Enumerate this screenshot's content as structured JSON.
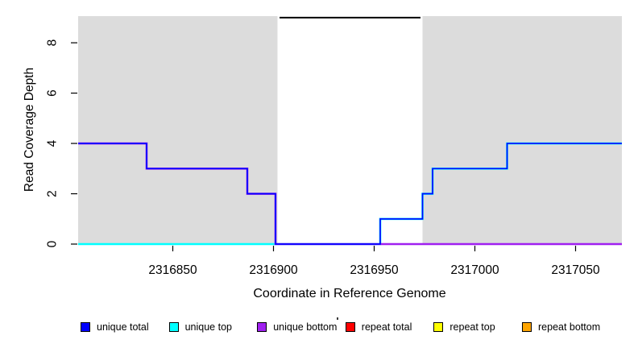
{
  "chart_data": {
    "type": "line",
    "subtype": "step-coverage",
    "title": "",
    "xlabel": "Coordinate in Reference Genome",
    "ylabel": "Read Coverage Depth",
    "xlim": [
      2316803,
      2317073
    ],
    "ylim": [
      0,
      9.06
    ],
    "x_ticks": [
      2316850,
      2316900,
      2316950,
      2317000,
      2317050
    ],
    "y_ticks": [
      0,
      2,
      4,
      6,
      8
    ],
    "grid": "off",
    "shading_color": "#DCDCDC",
    "shaded_regions": [
      {
        "from": 2316803,
        "to": 2316902
      },
      {
        "from": 2316974,
        "to": 2317073
      }
    ],
    "gap_marker": {
      "from": 2316903,
      "to": 2316973,
      "depth": 9,
      "color": "#000000"
    },
    "series": [
      {
        "name": "unique top",
        "color": "#00FFFF",
        "steps": [
          [
            2316803,
            2316953,
            0
          ],
          [
            2316953,
            2316974,
            1
          ],
          [
            2316974,
            2316979,
            2
          ],
          [
            2316979,
            2317016,
            3
          ],
          [
            2317016,
            2317073,
            4
          ]
        ]
      },
      {
        "name": "unique bottom",
        "color": "#A020F0",
        "steps": [
          [
            2316803,
            2316837,
            4
          ],
          [
            2316837,
            2316887,
            3
          ],
          [
            2316887,
            2316901,
            2
          ],
          [
            2316901,
            2317073,
            0
          ]
        ]
      },
      {
        "name": "unique total",
        "color": "#0000FF",
        "steps": [
          [
            2316803,
            2316837,
            4
          ],
          [
            2316837,
            2316887,
            3
          ],
          [
            2316887,
            2316901,
            2
          ],
          [
            2316901,
            2316953,
            0
          ],
          [
            2316953,
            2316974,
            1
          ],
          [
            2316974,
            2316979,
            2
          ],
          [
            2316979,
            2317016,
            3
          ],
          [
            2317016,
            2317073,
            4
          ]
        ]
      },
      {
        "name": "repeat total",
        "color": "#FF0000",
        "steps": []
      },
      {
        "name": "repeat top",
        "color": "#FFFF00",
        "steps": []
      },
      {
        "name": "repeat bottom",
        "color": "#FFA500",
        "steps": []
      }
    ],
    "legend_position": "bottom",
    "legend": [
      {
        "label": "unique total",
        "color": "#0000FF"
      },
      {
        "label": "unique top",
        "color": "#00FFFF"
      },
      {
        "label": "unique bottom",
        "color": "#A020F0"
      },
      {
        "label": "repeat total",
        "color": "#FF0000"
      },
      {
        "label": "repeat top",
        "color": "#FFFF00"
      },
      {
        "label": "repeat bottom",
        "color": "#FFA500"
      }
    ]
  }
}
